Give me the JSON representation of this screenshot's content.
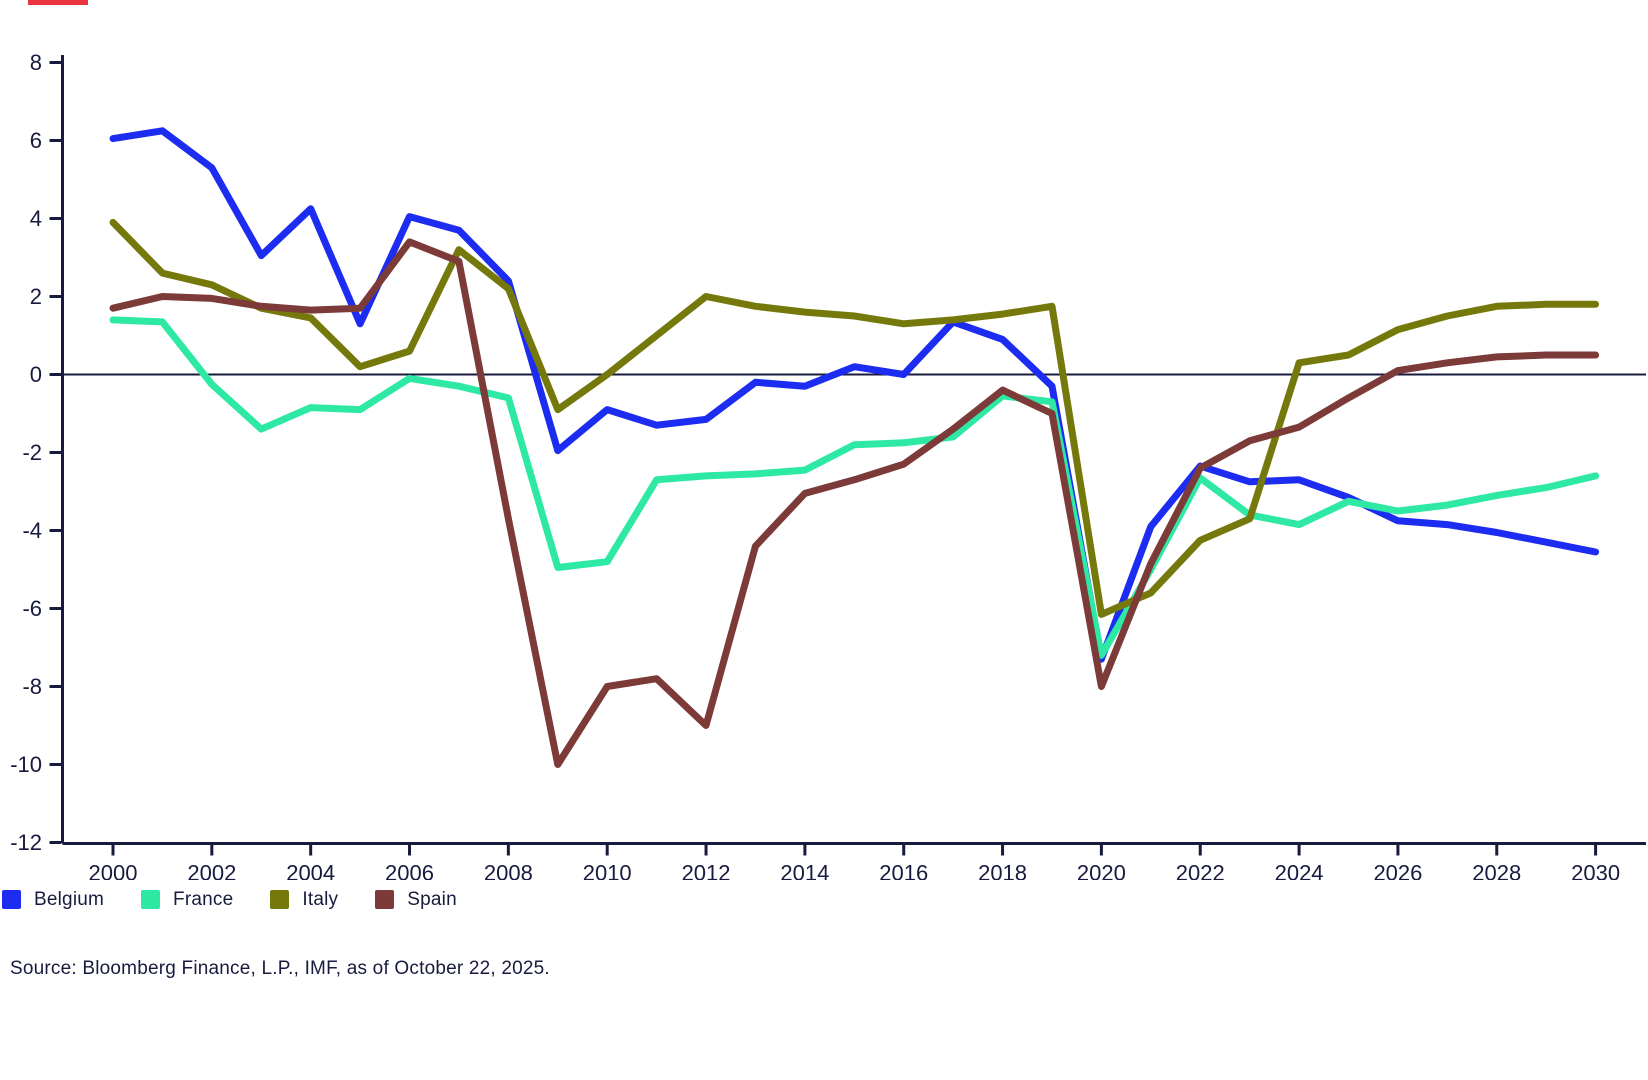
{
  "colors": {
    "background": "#ffffff",
    "axis": "#181b3d",
    "text": "#181b3d",
    "accent_bar": "#e8353f"
  },
  "chart_data": {
    "type": "line",
    "x": [
      2000,
      2001,
      2002,
      2003,
      2004,
      2005,
      2006,
      2007,
      2008,
      2009,
      2010,
      2011,
      2012,
      2013,
      2014,
      2015,
      2016,
      2017,
      2018,
      2019,
      2020,
      2021,
      2022,
      2023,
      2024,
      2025,
      2026,
      2027,
      2028,
      2029,
      2030
    ],
    "series": [
      {
        "name": "Belgium",
        "color": "#1c2cf0",
        "values": [
          6.05,
          6.25,
          5.3,
          3.05,
          4.25,
          1.3,
          4.05,
          3.7,
          2.4,
          -1.95,
          -0.9,
          -1.3,
          -1.15,
          -0.2,
          -0.3,
          0.2,
          0.0,
          1.35,
          0.9,
          -0.3,
          -7.3,
          -3.9,
          -2.35,
          -2.75,
          -2.7,
          -3.15,
          -3.75,
          -3.85,
          -4.05,
          -4.3,
          -4.55
        ]
      },
      {
        "name": "France",
        "color": "#2ee9a4",
        "values": [
          1.4,
          1.35,
          -0.25,
          -1.4,
          -0.85,
          -0.9,
          -0.1,
          -0.3,
          -0.6,
          -4.95,
          -4.8,
          -2.7,
          -2.6,
          -2.55,
          -2.45,
          -1.8,
          -1.75,
          -1.6,
          -0.55,
          -0.7,
          -7.2,
          -5.0,
          -2.65,
          -3.6,
          -3.85,
          -3.25,
          -3.5,
          -3.35,
          -3.1,
          -2.9,
          -2.6
        ]
      },
      {
        "name": "Italy",
        "color": "#75790c",
        "values": [
          3.9,
          2.6,
          2.3,
          1.7,
          1.45,
          0.2,
          0.6,
          3.2,
          2.2,
          -0.9,
          0.0,
          1.0,
          2.0,
          1.75,
          1.6,
          1.5,
          1.3,
          1.4,
          1.55,
          1.75,
          -6.15,
          -5.6,
          -4.25,
          -3.7,
          0.3,
          0.5,
          1.15,
          1.5,
          1.75,
          1.8,
          1.8
        ]
      },
      {
        "name": "Spain",
        "color": "#7c3a38",
        "values": [
          1.7,
          2.0,
          1.95,
          1.75,
          1.65,
          1.7,
          3.4,
          2.9,
          -3.7,
          -10.0,
          -8.0,
          -7.8,
          -9.0,
          -4.4,
          -3.05,
          -2.7,
          -2.3,
          -1.4,
          -0.4,
          -1.0,
          -8.0,
          -4.85,
          -2.4,
          -1.7,
          -1.35,
          -0.6,
          0.1,
          0.3,
          0.45,
          0.5,
          0.5
        ]
      }
    ],
    "title": "",
    "xlabel": "",
    "ylabel": "",
    "xticks": [
      2000,
      2002,
      2004,
      2006,
      2008,
      2010,
      2012,
      2014,
      2016,
      2018,
      2020,
      2022,
      2024,
      2026,
      2028,
      2030
    ],
    "yticks": [
      8,
      6,
      4,
      2,
      0,
      -2,
      -4,
      -6,
      -8,
      -10,
      -12
    ],
    "ylim": [
      -12,
      8
    ],
    "xlim": [
      2000,
      2030
    ],
    "grid": false,
    "zero_line": true,
    "legend_position": "bottom-left"
  },
  "legend": {
    "items": [
      "Belgium",
      "France",
      "Italy",
      "Spain"
    ]
  },
  "source": {
    "text": "Source: Bloomberg Finance, L.P., IMF, as of October 22, 2025."
  }
}
